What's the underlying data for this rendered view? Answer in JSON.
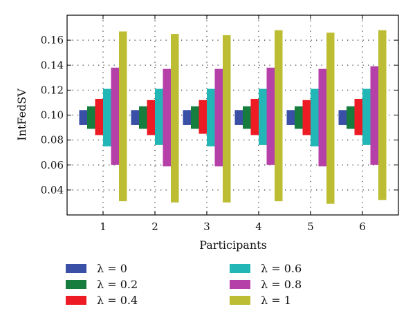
{
  "chart_data": {
    "type": "bar",
    "style": "floating-range-bars",
    "xlabel": "Participants",
    "ylabel": "IntFedSV",
    "ylim": [
      0.02,
      0.18
    ],
    "yticks": [
      0.04,
      0.06,
      0.08,
      0.1,
      0.12,
      0.14,
      0.16
    ],
    "ytick_labels": [
      "0.04",
      "0.06",
      "0.08",
      "0.10",
      "0.12",
      "0.14",
      "0.16"
    ],
    "categories": [
      "1",
      "2",
      "3",
      "4",
      "5",
      "6"
    ],
    "grid": true,
    "legend_placement": "bottom",
    "series": [
      {
        "name": "λ = 0",
        "color": "#3a4fa6",
        "low": [
          0.092,
          0.092,
          0.092,
          0.092,
          0.092,
          0.092
        ],
        "high": [
          0.104,
          0.104,
          0.104,
          0.104,
          0.104,
          0.104
        ]
      },
      {
        "name": "λ = 0.2",
        "color": "#167d3f",
        "low": [
          0.089,
          0.089,
          0.089,
          0.089,
          0.089,
          0.089
        ],
        "high": [
          0.107,
          0.107,
          0.107,
          0.107,
          0.107,
          0.107
        ]
      },
      {
        "name": "λ = 0.4",
        "color": "#ed1c24",
        "low": [
          0.084,
          0.084,
          0.085,
          0.084,
          0.084,
          0.084
        ],
        "high": [
          0.113,
          0.112,
          0.112,
          0.113,
          0.112,
          0.113
        ]
      },
      {
        "name": "λ = 0.6",
        "color": "#22b6b6",
        "low": [
          0.075,
          0.076,
          0.075,
          0.076,
          0.075,
          0.076
        ],
        "high": [
          0.121,
          0.121,
          0.121,
          0.121,
          0.121,
          0.121
        ]
      },
      {
        "name": "λ = 0.8",
        "color": "#b541a8",
        "low": [
          0.06,
          0.059,
          0.059,
          0.06,
          0.059,
          0.06
        ],
        "high": [
          0.138,
          0.137,
          0.137,
          0.138,
          0.137,
          0.139
        ]
      },
      {
        "name": "λ = 1",
        "color": "#bcbd32",
        "low": [
          0.031,
          0.03,
          0.03,
          0.031,
          0.029,
          0.032
        ],
        "high": [
          0.167,
          0.165,
          0.164,
          0.168,
          0.166,
          0.168
        ]
      }
    ]
  }
}
